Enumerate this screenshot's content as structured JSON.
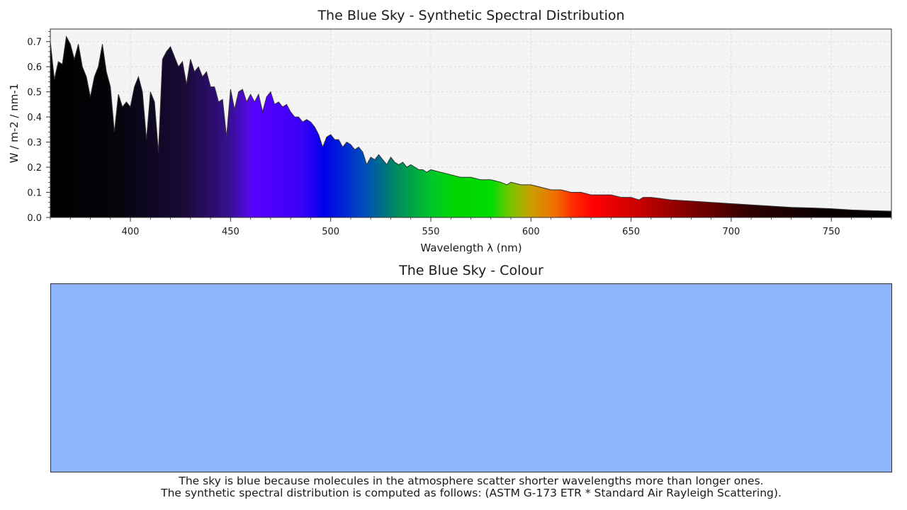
{
  "chart_data": [
    {
      "type": "area",
      "title": "The Blue Sky - Synthetic Spectral Distribution",
      "xlabel": "Wavelength λ (nm)",
      "ylabel": "W / m-2 / nm-1",
      "xlim": [
        360,
        780
      ],
      "ylim": [
        0,
        0.75
      ],
      "x_ticks": [
        400,
        450,
        500,
        550,
        600,
        650,
        700,
        750
      ],
      "y_ticks": [
        0.0,
        0.1,
        0.2,
        0.3,
        0.4,
        0.5,
        0.6,
        0.7
      ],
      "y_tick_labels": [
        "0.0",
        "0.1",
        "0.2",
        "0.3",
        "0.4",
        "0.5",
        "0.6",
        "0.7"
      ],
      "grid": true,
      "background": "#f4f4f4",
      "x": [
        360,
        362,
        364,
        366,
        368,
        370,
        372,
        374,
        376,
        378,
        380,
        382,
        384,
        386,
        388,
        390,
        392,
        394,
        396,
        398,
        400,
        402,
        404,
        406,
        408,
        410,
        412,
        414,
        416,
        418,
        420,
        422,
        424,
        426,
        428,
        430,
        432,
        434,
        436,
        438,
        440,
        442,
        444,
        446,
        448,
        450,
        452,
        454,
        456,
        458,
        460,
        462,
        464,
        466,
        468,
        470,
        472,
        474,
        476,
        478,
        480,
        482,
        484,
        486,
        488,
        490,
        492,
        494,
        496,
        498,
        500,
        502,
        504,
        506,
        508,
        510,
        512,
        514,
        516,
        518,
        520,
        522,
        524,
        526,
        528,
        530,
        532,
        534,
        536,
        538,
        540,
        542,
        544,
        546,
        548,
        550,
        555,
        560,
        565,
        570,
        575,
        580,
        585,
        588,
        590,
        595,
        600,
        605,
        610,
        615,
        620,
        625,
        630,
        635,
        640,
        645,
        650,
        654,
        656,
        658,
        660,
        665,
        670,
        680,
        690,
        700,
        710,
        720,
        730,
        740,
        750,
        760,
        770,
        780
      ],
      "values": [
        0.7,
        0.55,
        0.62,
        0.61,
        0.72,
        0.69,
        0.63,
        0.69,
        0.6,
        0.56,
        0.48,
        0.56,
        0.6,
        0.69,
        0.58,
        0.52,
        0.34,
        0.49,
        0.44,
        0.46,
        0.44,
        0.52,
        0.56,
        0.5,
        0.31,
        0.5,
        0.46,
        0.26,
        0.63,
        0.66,
        0.68,
        0.64,
        0.6,
        0.62,
        0.53,
        0.63,
        0.58,
        0.6,
        0.56,
        0.58,
        0.52,
        0.52,
        0.46,
        0.47,
        0.32,
        0.51,
        0.43,
        0.5,
        0.51,
        0.46,
        0.49,
        0.46,
        0.49,
        0.42,
        0.48,
        0.5,
        0.45,
        0.46,
        0.44,
        0.45,
        0.42,
        0.4,
        0.4,
        0.38,
        0.39,
        0.38,
        0.36,
        0.33,
        0.28,
        0.32,
        0.33,
        0.31,
        0.31,
        0.28,
        0.3,
        0.29,
        0.27,
        0.28,
        0.26,
        0.21,
        0.24,
        0.23,
        0.25,
        0.23,
        0.21,
        0.24,
        0.22,
        0.21,
        0.22,
        0.2,
        0.21,
        0.2,
        0.19,
        0.19,
        0.18,
        0.19,
        0.18,
        0.17,
        0.16,
        0.16,
        0.15,
        0.15,
        0.14,
        0.13,
        0.14,
        0.13,
        0.13,
        0.12,
        0.11,
        0.11,
        0.1,
        0.1,
        0.09,
        0.09,
        0.09,
        0.08,
        0.08,
        0.07,
        0.08,
        0.08,
        0.08,
        0.075,
        0.07,
        0.065,
        0.06,
        0.055,
        0.05,
        0.045,
        0.04,
        0.038,
        0.035,
        0.03,
        0.027,
        0.025
      ]
    },
    {
      "type": "swatch",
      "title": "The Blue Sky - Colour",
      "colour": "#8db4fd"
    }
  ],
  "caption": {
    "line1": "The sky is blue because molecules in the atmosphere scatter shorter wavelengths more than longer ones.",
    "line2": "The synthetic spectral distribution is computed as follows: (ASTM G-173 ETR * Standard Air Rayleigh Scattering)."
  }
}
